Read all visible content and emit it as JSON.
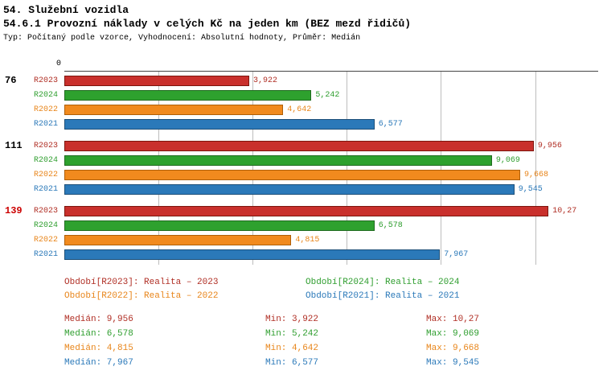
{
  "header": {
    "title": "54. Služební vozidla",
    "subtitle": "54.6.1 Provozní náklady v celých Kč na jeden km (BEZ mezd řidičů)",
    "meta": "Typ: Počítaný podle vzorce, Vyhodnocení: Absolutní hodnoty, Průměr: Medián"
  },
  "chart_data": {
    "type": "bar",
    "orientation": "horizontal",
    "title": "54.6.1 Provozní náklady v celých Kč na jeden km (BEZ mezd řidičů)",
    "xlabel": "",
    "ylabel": "",
    "unit": "Kč/km",
    "grid": true,
    "axis": {
      "min": 0,
      "max": 11.34,
      "step": 2,
      "zero_label": "0"
    },
    "series_colors": {
      "R2023": {
        "fill": "#c9302c",
        "border": "#7d150d",
        "text": "#b02e24"
      },
      "R2024": {
        "fill": "#2ea12e",
        "border": "#1f6b1f",
        "text": "#2f9e2f"
      },
      "R2022": {
        "fill": "#f18a1e",
        "border": "#af5f08",
        "text": "#e8851a"
      },
      "R2021": {
        "fill": "#2b79b9",
        "border": "#1b4e78",
        "text": "#2b79b9"
      }
    },
    "groups": [
      {
        "id": "76",
        "id_color": "#000000",
        "bars": [
          {
            "series": "R2023",
            "value": 3.922,
            "label": "3,922"
          },
          {
            "series": "R2024",
            "value": 5.242,
            "label": "5,242"
          },
          {
            "series": "R2022",
            "value": 4.642,
            "label": "4,642"
          },
          {
            "series": "R2021",
            "value": 6.577,
            "label": "6,577"
          }
        ]
      },
      {
        "id": "111",
        "id_color": "#000000",
        "bars": [
          {
            "series": "R2023",
            "value": 9.956,
            "label": "9,956"
          },
          {
            "series": "R2024",
            "value": 9.069,
            "label": "9,069"
          },
          {
            "series": "R2022",
            "value": 9.668,
            "label": "9,668"
          },
          {
            "series": "R2021",
            "value": 9.545,
            "label": "9,545"
          }
        ]
      },
      {
        "id": "139",
        "id_color": "#cc0000",
        "bars": [
          {
            "series": "R2023",
            "value": 10.27,
            "label": "10,27"
          },
          {
            "series": "R2024",
            "value": 6.578,
            "label": "6,578"
          },
          {
            "series": "R2022",
            "value": 4.815,
            "label": "4,815"
          },
          {
            "series": "R2021",
            "value": 7.967,
            "label": "7,967"
          }
        ]
      }
    ]
  },
  "legend": [
    {
      "series": "R2023",
      "text": "Období[R2023]: Realita – 2023"
    },
    {
      "series": "R2024",
      "text": "Období[R2024]: Realita – 2024"
    },
    {
      "series": "R2022",
      "text": "Období[R2022]: Realita – 2022"
    },
    {
      "series": "R2021",
      "text": "Období[R2021]: Realita – 2021"
    }
  ],
  "stats": [
    {
      "series": "R2023",
      "median": "Medián: 9,956",
      "min": "Min: 3,922",
      "max": "Max: 10,27"
    },
    {
      "series": "R2024",
      "median": "Medián: 6,578",
      "min": "Min: 5,242",
      "max": "Max: 9,069"
    },
    {
      "series": "R2022",
      "median": "Medián: 4,815",
      "min": "Min: 4,642",
      "max": "Max: 9,668"
    },
    {
      "series": "R2021",
      "median": "Medián: 7,967",
      "min": "Min: 6,577",
      "max": "Max: 9,545"
    }
  ]
}
